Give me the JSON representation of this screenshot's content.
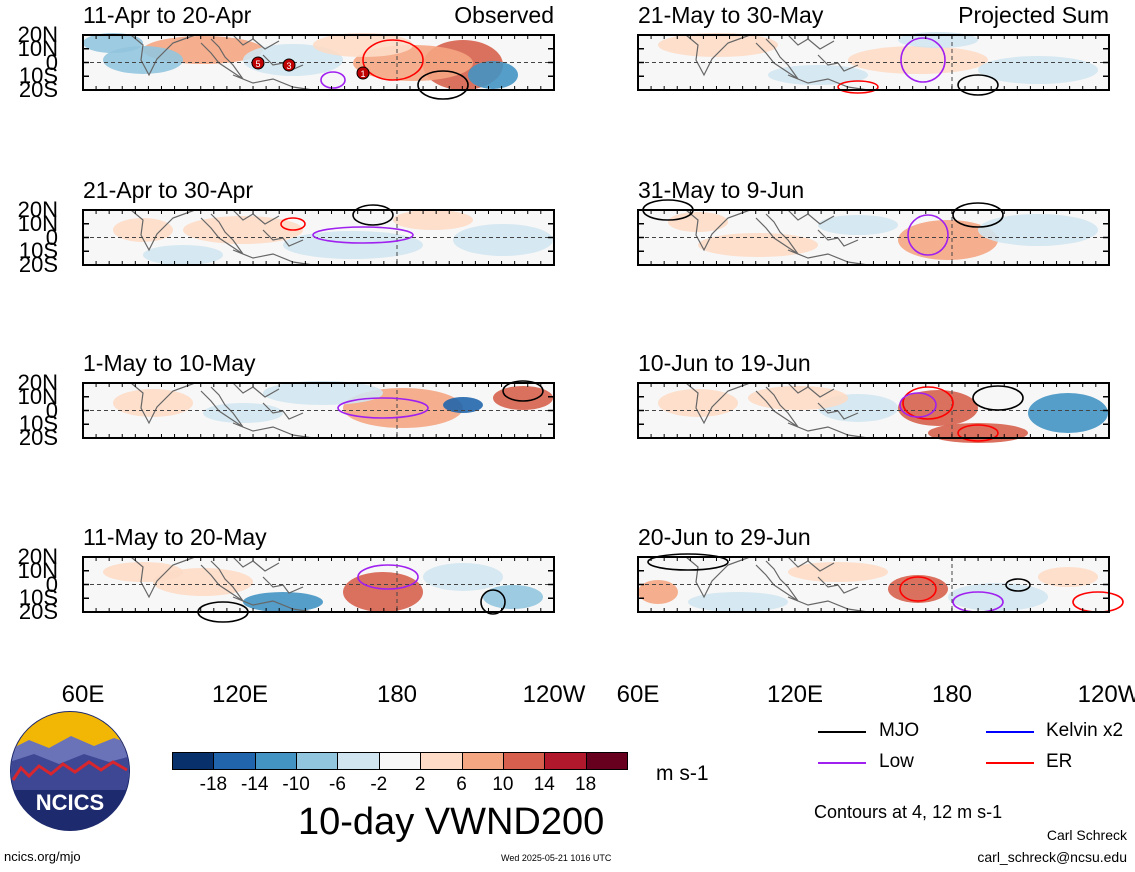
{
  "header": {
    "observed_label": "Observed",
    "projected_label": "Projected Sum"
  },
  "chart_data": {
    "type": "heatmap",
    "title": "10-day VWND200",
    "units": "m s-1",
    "grid": "on",
    "legend_placement": "bottom",
    "lat_labels": [
      "20N",
      "10N",
      "0",
      "10S",
      "20S"
    ],
    "lon_labels": [
      "60E",
      "120E",
      "180",
      "120W"
    ],
    "lon_range": [
      "60E",
      "120W"
    ],
    "lat_range": [
      "20S",
      "20N"
    ],
    "colorbar": {
      "ticks": [
        "-18",
        "-14",
        "-10",
        "-6",
        "-2",
        "2",
        "6",
        "10",
        "14",
        "18"
      ],
      "colors": [
        "#08306b",
        "#2166ac",
        "#4393c3",
        "#92c5de",
        "#d1e5f0",
        "#f7f7f7",
        "#fddbc7",
        "#f4a582",
        "#d6604d",
        "#b2182b",
        "#67001f"
      ]
    },
    "panels": [
      {
        "id": "p1",
        "period": "11-Apr to 20-Apr",
        "category": "Observed"
      },
      {
        "id": "p2",
        "period": "21-Apr to 30-Apr",
        "category": "Observed"
      },
      {
        "id": "p3",
        "period": "1-May to 10-May",
        "category": "Observed"
      },
      {
        "id": "p4",
        "period": "11-May to 20-May",
        "category": "Observed"
      },
      {
        "id": "p5",
        "period": "21-May to 30-May",
        "category": "Projected Sum"
      },
      {
        "id": "p6",
        "period": "31-May to 9-Jun",
        "category": "Projected Sum"
      },
      {
        "id": "p7",
        "period": "10-Jun to 19-Jun",
        "category": "Projected Sum"
      },
      {
        "id": "p8",
        "period": "20-Jun to 29-Jun",
        "category": "Projected Sum"
      }
    ],
    "storm_markers": [
      "5",
      "3",
      "1"
    ],
    "contour_legend": [
      {
        "label": "MJO",
        "color": "#000000"
      },
      {
        "label": "Kelvin x2",
        "color": "#0000ff"
      },
      {
        "label": "Low",
        "color": "#a020f0"
      },
      {
        "label": "ER",
        "color": "#ff0000"
      }
    ],
    "contour_note": "Contours at 4, 12 m s-1"
  },
  "footer": {
    "logo_text": "NCICS",
    "site": "ncics.org/mjo",
    "timestamp": "Wed 2025-05-21 1016 UTC",
    "author": "Carl Schreck",
    "email": "carl_schreck@ncsu.edu"
  }
}
